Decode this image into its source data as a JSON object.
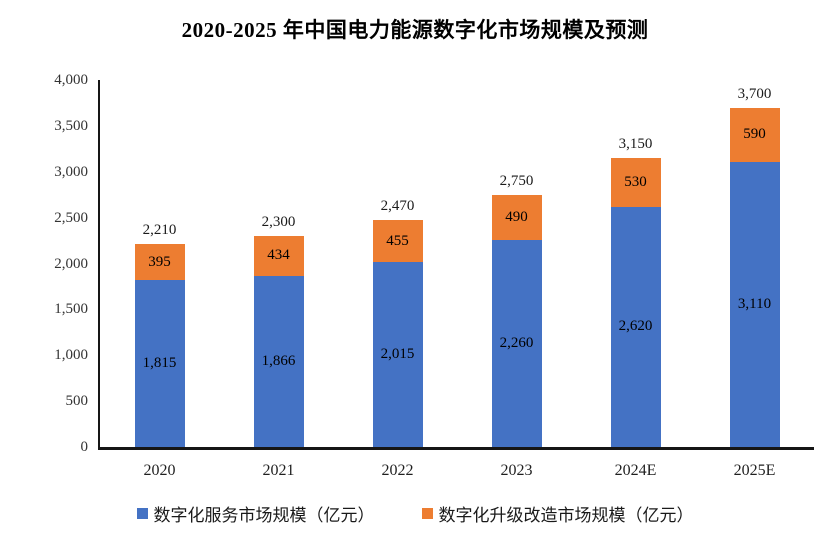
{
  "chart_data": {
    "type": "bar",
    "stacked": true,
    "title": "2020-2025 年中国电力能源数字化市场规模及预测",
    "categories": [
      "2020",
      "2021",
      "2022",
      "2023",
      "2024E",
      "2025E"
    ],
    "series": [
      {
        "name": "数字化服务市场规模（亿元）",
        "color": "#4472C4",
        "values": [
          1815,
          1866,
          2015,
          2260,
          2620,
          3110
        ],
        "labels": [
          "1,815",
          "1,866",
          "2,015",
          "2,260",
          "2,620",
          "3,110"
        ]
      },
      {
        "name": "数字化升级改造市场规模（亿元）",
        "color": "#ED7D31",
        "values": [
          395,
          434,
          455,
          490,
          530,
          590
        ],
        "labels": [
          "395",
          "434",
          "455",
          "490",
          "530",
          "590"
        ]
      }
    ],
    "totals": [
      2210,
      2300,
      2470,
      2750,
      3150,
      3700
    ],
    "total_labels": [
      "2,210",
      "2,300",
      "2,470",
      "2,750",
      "3,150",
      "3,700"
    ],
    "y_axis": {
      "min": 0,
      "max": 4000,
      "tick_interval": 500,
      "tick_labels": [
        "0",
        "500",
        "1,000",
        "1,500",
        "2,000",
        "2,500",
        "3,000",
        "3,500",
        "4,000"
      ]
    },
    "axis_color": "#161616",
    "gridlines": false,
    "legend_position": "bottom"
  }
}
